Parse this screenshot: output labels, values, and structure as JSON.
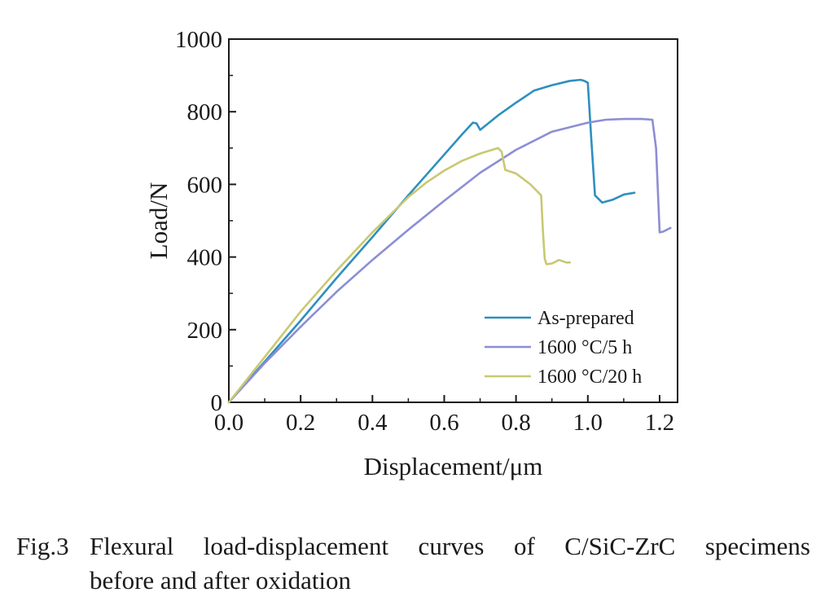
{
  "chart_data": {
    "type": "line",
    "xlabel": "Displacement/μm",
    "ylabel": "Load/N",
    "xlim": [
      0.0,
      1.25
    ],
    "ylim": [
      0,
      1000
    ],
    "x_ticks": [
      "0.0",
      "0.2",
      "0.4",
      "0.6",
      "0.8",
      "1.0",
      "1.2"
    ],
    "y_ticks": [
      "0",
      "200",
      "400",
      "600",
      "800",
      "1000"
    ],
    "grid": false,
    "legend_position": "bottom-right",
    "series": [
      {
        "name": "As-prepared",
        "color": "#2e8fc0",
        "x": [
          0.0,
          0.1,
          0.2,
          0.3,
          0.4,
          0.5,
          0.6,
          0.65,
          0.68,
          0.69,
          0.7,
          0.75,
          0.8,
          0.85,
          0.9,
          0.95,
          0.98,
          0.99,
          1.0,
          1.01,
          1.02,
          1.04,
          1.07,
          1.1,
          1.13
        ],
        "y": [
          0,
          112,
          225,
          342,
          455,
          570,
          682,
          738,
          770,
          768,
          750,
          790,
          825,
          858,
          873,
          885,
          888,
          885,
          880,
          720,
          570,
          550,
          558,
          572,
          577
        ]
      },
      {
        "name": "1600 °C/5 h",
        "color": "#8c8ed4",
        "x": [
          0.0,
          0.1,
          0.2,
          0.3,
          0.4,
          0.5,
          0.6,
          0.7,
          0.8,
          0.9,
          1.0,
          1.05,
          1.1,
          1.15,
          1.18,
          1.19,
          1.2,
          1.21,
          1.23
        ],
        "y": [
          0,
          108,
          208,
          304,
          392,
          475,
          555,
          632,
          695,
          745,
          770,
          778,
          780,
          780,
          778,
          700,
          468,
          470,
          480
        ]
      },
      {
        "name": "1600 °C/20 h",
        "color": "#c9c872",
        "x": [
          0.0,
          0.1,
          0.2,
          0.3,
          0.4,
          0.5,
          0.55,
          0.6,
          0.65,
          0.7,
          0.75,
          0.76,
          0.77,
          0.8,
          0.84,
          0.87,
          0.875,
          0.88,
          0.885,
          0.9,
          0.92,
          0.94,
          0.95
        ],
        "y": [
          0,
          125,
          250,
          362,
          468,
          565,
          605,
          638,
          665,
          685,
          700,
          690,
          640,
          630,
          600,
          570,
          470,
          395,
          380,
          382,
          392,
          385,
          385
        ]
      }
    ]
  },
  "caption": {
    "label": "Fig.3",
    "line1": "Flexural load-displacement curves of C/SiC-ZrC specimens",
    "line2": "before and after oxidation"
  }
}
